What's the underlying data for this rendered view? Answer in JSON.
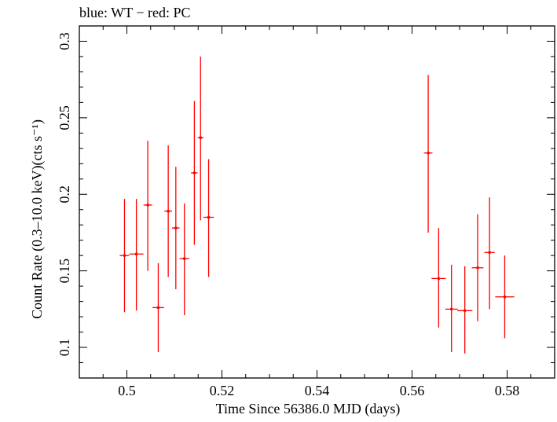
{
  "chart_data": {
    "type": "scatter",
    "title": "blue: WT − red: PC",
    "xlabel": "Time Since 56386.0 MJD (days)",
    "ylabel": "Count Rate (0.3–10.0 keV)(cts s⁻¹)",
    "xlim": [
      0.49,
      0.59
    ],
    "ylim": [
      0.08,
      0.31
    ],
    "xticks": [
      0.5,
      0.52,
      0.54,
      0.56,
      0.58
    ],
    "xtick_labels": [
      "0.5",
      "0.52",
      "0.54",
      "0.56",
      "0.58"
    ],
    "yticks": [
      0.1,
      0.15,
      0.2,
      0.25,
      0.3
    ],
    "ytick_labels": [
      "0.1",
      "0.15",
      "0.2",
      "0.25",
      "0.3"
    ],
    "grid": false,
    "series": [
      {
        "color": "#ff0000",
        "points": [
          {
            "x": 0.4995,
            "xerr": 0.001,
            "y": 0.16,
            "ylo": 0.123,
            "yhi": 0.197
          },
          {
            "x": 0.502,
            "xerr": 0.0015,
            "y": 0.161,
            "ylo": 0.124,
            "yhi": 0.197
          },
          {
            "x": 0.5044,
            "xerr": 0.0009,
            "y": 0.193,
            "ylo": 0.15,
            "yhi": 0.235
          },
          {
            "x": 0.5066,
            "xerr": 0.0012,
            "y": 0.126,
            "ylo": 0.097,
            "yhi": 0.155
          },
          {
            "x": 0.5087,
            "xerr": 0.0008,
            "y": 0.189,
            "ylo": 0.146,
            "yhi": 0.232
          },
          {
            "x": 0.5103,
            "xerr": 0.0008,
            "y": 0.178,
            "ylo": 0.138,
            "yhi": 0.218
          },
          {
            "x": 0.5121,
            "xerr": 0.001,
            "y": 0.158,
            "ylo": 0.121,
            "yhi": 0.194
          },
          {
            "x": 0.5142,
            "xerr": 0.0007,
            "y": 0.214,
            "ylo": 0.167,
            "yhi": 0.261
          },
          {
            "x": 0.5155,
            "xerr": 0.0006,
            "y": 0.237,
            "ylo": 0.183,
            "yhi": 0.29
          },
          {
            "x": 0.5172,
            "xerr": 0.0011,
            "y": 0.185,
            "ylo": 0.146,
            "yhi": 0.223
          },
          {
            "x": 0.5634,
            "xerr": 0.0009,
            "y": 0.227,
            "ylo": 0.175,
            "yhi": 0.278
          },
          {
            "x": 0.5656,
            "xerr": 0.0015,
            "y": 0.145,
            "ylo": 0.113,
            "yhi": 0.178
          },
          {
            "x": 0.5683,
            "xerr": 0.0013,
            "y": 0.125,
            "ylo": 0.097,
            "yhi": 0.154
          },
          {
            "x": 0.5711,
            "xerr": 0.0016,
            "y": 0.124,
            "ylo": 0.096,
            "yhi": 0.153
          },
          {
            "x": 0.5738,
            "xerr": 0.0012,
            "y": 0.152,
            "ylo": 0.117,
            "yhi": 0.187
          },
          {
            "x": 0.5763,
            "xerr": 0.0011,
            "y": 0.162,
            "ylo": 0.125,
            "yhi": 0.198
          },
          {
            "x": 0.5795,
            "xerr": 0.002,
            "y": 0.133,
            "ylo": 0.106,
            "yhi": 0.16
          }
        ]
      }
    ]
  }
}
